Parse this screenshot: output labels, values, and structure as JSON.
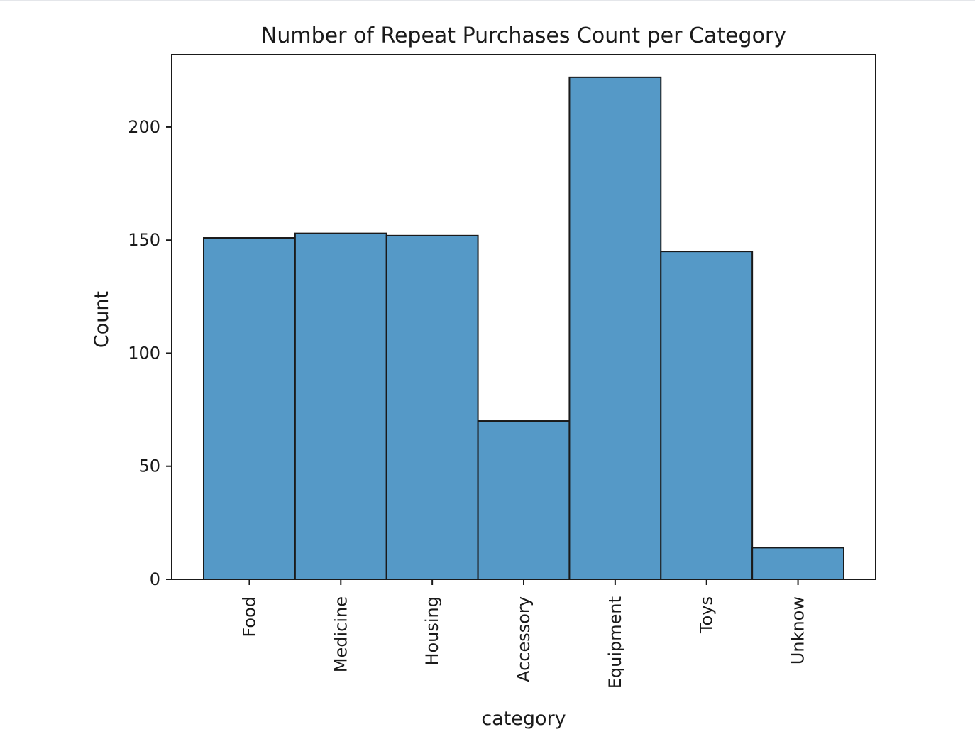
{
  "chart_data": {
    "type": "bar",
    "title": "Number of Repeat Purchases Count per Category",
    "xlabel": "category",
    "ylabel": "Count",
    "categories": [
      "Food",
      "Medicine",
      "Housing",
      "Accessory",
      "Equipment",
      "Toys",
      "Unknow"
    ],
    "values": [
      151,
      153,
      152,
      70,
      222,
      145,
      14
    ],
    "ylim": [
      0,
      232
    ],
    "yticks": [
      0,
      50,
      100,
      150,
      200
    ],
    "grid": false,
    "legend": "none",
    "bar_color": "#5599c7",
    "edge_color": "#1a1a1a"
  }
}
